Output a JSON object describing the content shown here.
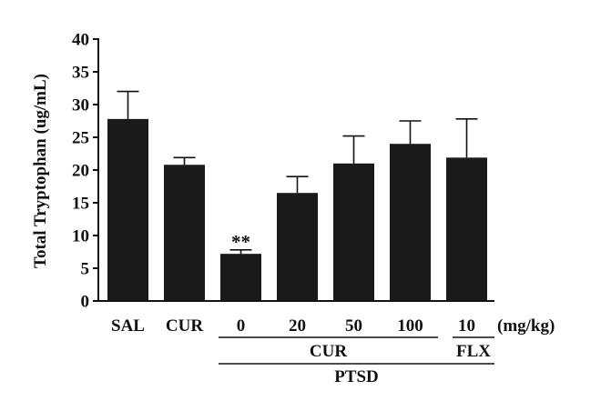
{
  "chart_data": {
    "type": "bar",
    "ylabel": "Total Tryptophan (ug/mL)",
    "ylim": [
      0,
      40
    ],
    "yticks": [
      0,
      5,
      10,
      15,
      20,
      25,
      30,
      35,
      40
    ],
    "categories": [
      "SAL",
      "CUR",
      "0",
      "20",
      "50",
      "100",
      "10"
    ],
    "values": [
      27.8,
      20.8,
      7.2,
      16.5,
      21.0,
      24.0,
      21.9
    ],
    "errors": [
      4.2,
      1.1,
      0.6,
      2.5,
      4.2,
      3.5,
      5.9
    ],
    "significance": [
      "",
      "",
      "**",
      "",
      "",
      "",
      ""
    ],
    "unit_label": "(mg/kg)",
    "groups": [
      {
        "label": "CUR",
        "from": 2,
        "to": 5
      },
      {
        "label": "FLX",
        "from": 6,
        "to": 6
      },
      {
        "label": "PTSD",
        "from": 2,
        "to": 6
      }
    ],
    "bar_color": "#1a1a1a",
    "grid": false
  }
}
